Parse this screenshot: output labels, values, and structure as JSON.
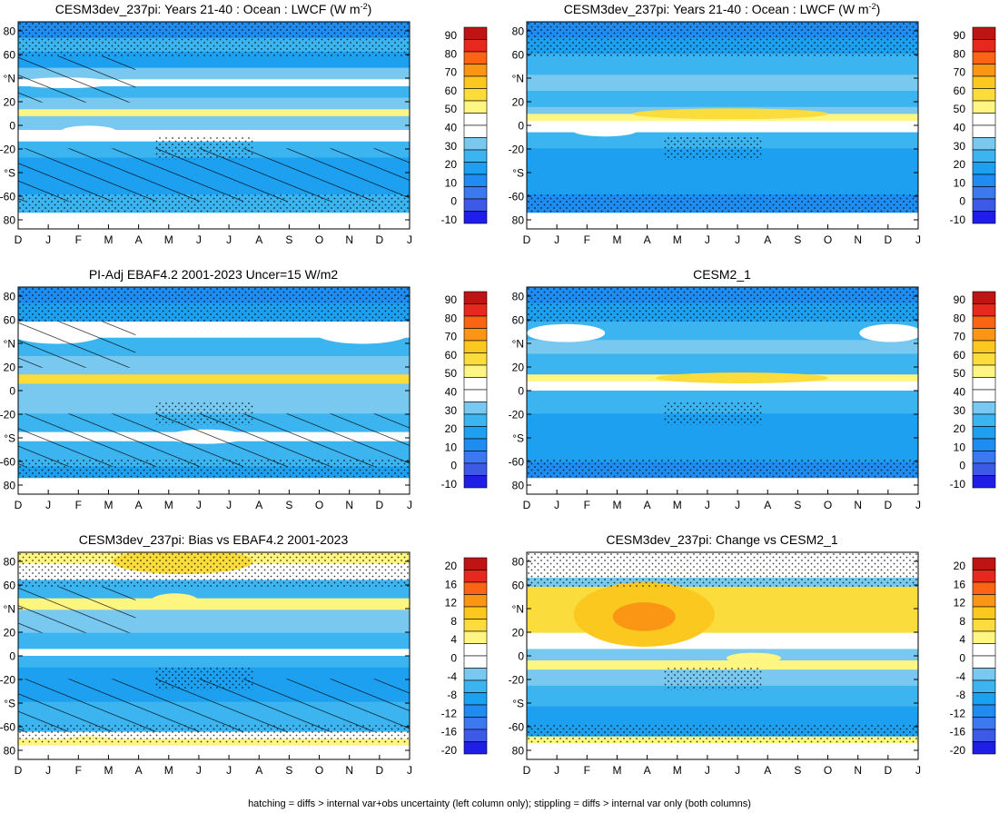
{
  "palettes": {
    "abs": [
      "#1e1ee6",
      "#3c5ae6",
      "#3c78f0",
      "#1e8cf0",
      "#1ea0f0",
      "#3cb4f0",
      "#78c8f0",
      "#ffffff",
      "#ffffff",
      "#fff582",
      "#fadc3c",
      "#fac81e",
      "#fa9614",
      "#fa6414",
      "#e6281e",
      "#be1414"
    ],
    "diff": [
      "#1e1ee6",
      "#3c5ae6",
      "#3c78f0",
      "#1e8cf0",
      "#1ea0f0",
      "#3cb4f0",
      "#78c8f0",
      "#ffffff",
      "#ffffff",
      "#fff582",
      "#fadc3c",
      "#fac81e",
      "#fa9614",
      "#fa6414",
      "#e6281e",
      "#be1414"
    ]
  },
  "chart_data": [
    {
      "type": "heatmap",
      "title": "CESM3dev_237pi: Years 21-40 : Ocean : LWCF (W m",
      "title_sup": "-2",
      "title_end": ")",
      "x_ticks": [
        "D",
        "J",
        "F",
        "M",
        "A",
        "M",
        "J",
        "J",
        "A",
        "S",
        "O",
        "N",
        "D",
        "J"
      ],
      "y_ticks": [
        "80",
        "60",
        "°N",
        "20",
        "0",
        "-20",
        "°S",
        "-60",
        "80"
      ],
      "colorbar_labels": [
        "90",
        "80",
        "70",
        "60",
        "50",
        "40",
        "30",
        "20",
        "10",
        "0",
        "-10"
      ],
      "palette": "abs",
      "hatching": true,
      "stippling": true
    },
    {
      "type": "heatmap",
      "title": "CESM3dev_237pi: Years 21-40 : Ocean : LWCF (W m",
      "title_sup": "-2",
      "title_end": ")",
      "x_ticks": [
        "D",
        "J",
        "F",
        "M",
        "A",
        "M",
        "J",
        "J",
        "A",
        "S",
        "O",
        "N",
        "D",
        "J"
      ],
      "y_ticks": [
        "80",
        "60",
        "°N",
        "20",
        "0",
        "-20",
        "°S",
        "-60",
        "80"
      ],
      "colorbar_labels": [
        "90",
        "80",
        "70",
        "60",
        "50",
        "40",
        "30",
        "20",
        "10",
        "0",
        "-10"
      ],
      "palette": "abs",
      "hatching": false,
      "stippling": true
    },
    {
      "type": "heatmap",
      "title": "PI-Adj EBAF4.2 2001-2023 Uncer=15 W/m2",
      "title_sup": "",
      "title_end": "",
      "x_ticks": [
        "D",
        "J",
        "F",
        "M",
        "A",
        "M",
        "J",
        "J",
        "A",
        "S",
        "O",
        "N",
        "D",
        "J"
      ],
      "y_ticks": [
        "80",
        "60",
        "°N",
        "20",
        "0",
        "-20",
        "°S",
        "-60",
        "80"
      ],
      "colorbar_labels": [
        "90",
        "80",
        "70",
        "60",
        "50",
        "40",
        "30",
        "20",
        "10",
        "0",
        "-10"
      ],
      "palette": "abs",
      "hatching": true,
      "stippling": true
    },
    {
      "type": "heatmap",
      "title": "CESM2_1",
      "title_sup": "",
      "title_end": "",
      "x_ticks": [
        "D",
        "J",
        "F",
        "M",
        "A",
        "M",
        "J",
        "J",
        "A",
        "S",
        "O",
        "N",
        "D",
        "J"
      ],
      "y_ticks": [
        "80",
        "60",
        "°N",
        "20",
        "0",
        "-20",
        "°S",
        "-60",
        "80"
      ],
      "colorbar_labels": [
        "90",
        "80",
        "70",
        "60",
        "50",
        "40",
        "30",
        "20",
        "10",
        "0",
        "-10"
      ],
      "palette": "abs",
      "hatching": false,
      "stippling": true
    },
    {
      "type": "heatmap",
      "title": "CESM3dev_237pi: Bias vs EBAF4.2 2001-2023",
      "title_sup": "",
      "title_end": "",
      "x_ticks": [
        "D",
        "J",
        "F",
        "M",
        "A",
        "M",
        "J",
        "J",
        "A",
        "S",
        "O",
        "N",
        "D",
        "J"
      ],
      "y_ticks": [
        "80",
        "60",
        "°N",
        "20",
        "0",
        "-20",
        "°S",
        "-60",
        "80"
      ],
      "colorbar_labels": [
        "20",
        "16",
        "12",
        "8",
        "4",
        "0",
        "-4",
        "-8",
        "-12",
        "-16",
        "-20"
      ],
      "palette": "diff",
      "hatching": true,
      "stippling": true
    },
    {
      "type": "heatmap",
      "title": "CESM3dev_237pi: Change vs CESM2_1",
      "title_sup": "",
      "title_end": "",
      "x_ticks": [
        "D",
        "J",
        "F",
        "M",
        "A",
        "M",
        "J",
        "J",
        "A",
        "S",
        "O",
        "N",
        "D",
        "J"
      ],
      "y_ticks": [
        "80",
        "60",
        "°N",
        "20",
        "0",
        "-20",
        "°S",
        "-60",
        "80"
      ],
      "colorbar_labels": [
        "20",
        "16",
        "12",
        "8",
        "4",
        "0",
        "-4",
        "-8",
        "-12",
        "-16",
        "-20"
      ],
      "palette": "diff",
      "hatching": false,
      "stippling": true
    }
  ],
  "footer": "hatching = diffs > internal var+obs uncertainty (left column only); stippling = diffs > internal var only (both columns)"
}
